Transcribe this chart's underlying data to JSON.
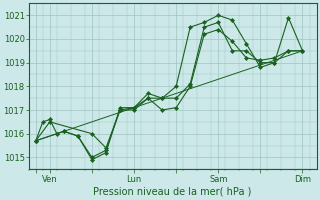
{
  "bg_color": "#cce8e8",
  "grid_color": "#a0c4c4",
  "line_color": "#1a6020",
  "ylim": [
    1014.5,
    1021.5
  ],
  "yticks": [
    1015,
    1016,
    1017,
    1018,
    1019,
    1020,
    1021
  ],
  "xlabel": "Pression niveau de la mer( hPa )",
  "xtick_labels": [
    "",
    "Ven",
    "",
    "Lun",
    "",
    "Sam",
    "",
    "Dim"
  ],
  "xtick_positions": [
    0,
    12,
    48,
    84,
    120,
    156,
    192,
    228
  ],
  "xlim": [
    -6,
    240
  ],
  "lines": [
    {
      "points": [
        [
          0,
          1015.7
        ],
        [
          6,
          1016.5
        ],
        [
          12,
          1016.6
        ],
        [
          18,
          1016.0
        ],
        [
          24,
          1016.1
        ],
        [
          36,
          1015.9
        ],
        [
          48,
          1015.0
        ],
        [
          60,
          1015.3
        ],
        [
          72,
          1017.0
        ],
        [
          84,
          1017.0
        ],
        [
          96,
          1017.5
        ],
        [
          108,
          1017.0
        ],
        [
          120,
          1017.1
        ],
        [
          132,
          1018.0
        ],
        [
          144,
          1020.2
        ],
        [
          156,
          1020.4
        ],
        [
          168,
          1019.9
        ],
        [
          180,
          1019.2
        ],
        [
          192,
          1019.1
        ],
        [
          204,
          1019.2
        ],
        [
          216,
          1019.5
        ],
        [
          228,
          1019.5
        ]
      ]
    },
    {
      "points": [
        [
          0,
          1015.7
        ],
        [
          24,
          1016.1
        ],
        [
          36,
          1015.9
        ],
        [
          48,
          1014.9
        ],
        [
          60,
          1015.2
        ],
        [
          72,
          1017.1
        ],
        [
          84,
          1017.1
        ],
        [
          96,
          1017.7
        ],
        [
          108,
          1017.5
        ],
        [
          120,
          1017.5
        ],
        [
          132,
          1018.1
        ],
        [
          144,
          1020.5
        ],
        [
          156,
          1020.7
        ],
        [
          168,
          1019.5
        ],
        [
          180,
          1019.5
        ],
        [
          192,
          1019.0
        ],
        [
          204,
          1019.0
        ],
        [
          216,
          1019.5
        ],
        [
          228,
          1019.5
        ]
      ]
    },
    {
      "points": [
        [
          0,
          1015.7
        ],
        [
          12,
          1016.5
        ],
        [
          48,
          1016.0
        ],
        [
          60,
          1015.4
        ],
        [
          72,
          1017.0
        ],
        [
          84,
          1017.1
        ],
        [
          96,
          1017.5
        ],
        [
          108,
          1017.5
        ],
        [
          120,
          1018.0
        ],
        [
          132,
          1020.5
        ],
        [
          144,
          1020.7
        ],
        [
          156,
          1021.0
        ],
        [
          168,
          1020.8
        ],
        [
          180,
          1019.8
        ],
        [
          192,
          1018.8
        ],
        [
          204,
          1019.0
        ],
        [
          216,
          1020.9
        ],
        [
          228,
          1019.5
        ]
      ]
    },
    {
      "points": [
        [
          0,
          1015.7
        ],
        [
          228,
          1019.5
        ]
      ]
    }
  ]
}
